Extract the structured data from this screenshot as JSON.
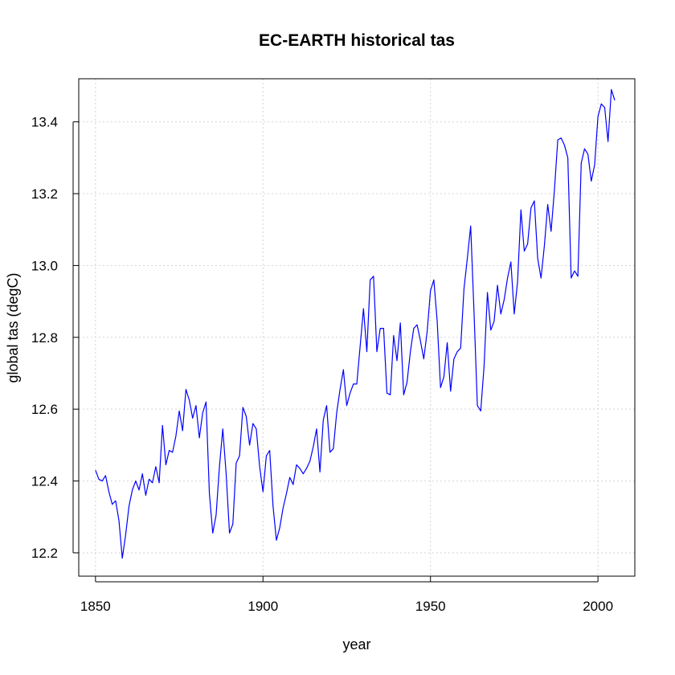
{
  "chart_data": {
    "type": "line",
    "title": "EC-EARTH historical tas",
    "xlabel": "year",
    "ylabel": "global tas (degC)",
    "xlim": [
      1845,
      2011
    ],
    "ylim": [
      12.135,
      13.52
    ],
    "xticks": [
      1850,
      1900,
      1950,
      2000
    ],
    "yticks": [
      12.2,
      12.4,
      12.6,
      12.8,
      13.0,
      13.2,
      13.4
    ],
    "ytick_labels": [
      "12.2",
      "12.4",
      "12.6",
      "12.8",
      "13.0",
      "13.2",
      "13.4"
    ],
    "grid": true,
    "series": [
      {
        "name": "tas",
        "color": "#0000ff",
        "x_start": 1850,
        "values": [
          12.43,
          12.405,
          12.4,
          12.415,
          12.37,
          12.335,
          12.345,
          12.29,
          12.185,
          12.25,
          12.33,
          12.375,
          12.4,
          12.375,
          12.42,
          12.36,
          12.405,
          12.395,
          12.44,
          12.395,
          12.555,
          12.445,
          12.485,
          12.48,
          12.525,
          12.595,
          12.54,
          12.655,
          12.625,
          12.575,
          12.61,
          12.52,
          12.59,
          12.62,
          12.365,
          12.255,
          12.305,
          12.44,
          12.545,
          12.42,
          12.255,
          12.28,
          12.45,
          12.47,
          12.605,
          12.58,
          12.5,
          12.56,
          12.545,
          12.44,
          12.37,
          12.47,
          12.485,
          12.33,
          12.235,
          12.27,
          12.325,
          12.365,
          12.41,
          12.39,
          12.445,
          12.435,
          12.42,
          12.435,
          12.455,
          12.495,
          12.545,
          12.425,
          12.57,
          12.61,
          12.48,
          12.49,
          12.59,
          12.655,
          12.71,
          12.61,
          12.645,
          12.67,
          12.67,
          12.775,
          12.88,
          12.76,
          12.96,
          12.97,
          12.76,
          12.825,
          12.825,
          12.645,
          12.64,
          12.805,
          12.735,
          12.84,
          12.64,
          12.675,
          12.76,
          12.825,
          12.835,
          12.79,
          12.74,
          12.815,
          12.93,
          12.96,
          12.845,
          12.66,
          12.69,
          12.785,
          12.65,
          12.74,
          12.76,
          12.77,
          12.935,
          13.02,
          13.11,
          12.87,
          12.61,
          12.595,
          12.72,
          12.925,
          12.82,
          12.845,
          12.945,
          12.865,
          12.905,
          12.965,
          13.01,
          12.865,
          12.955,
          13.155,
          13.04,
          13.06,
          13.16,
          13.18,
          13.02,
          12.965,
          13.055,
          13.17,
          13.095,
          13.21,
          13.35,
          13.355,
          13.335,
          13.3,
          12.965,
          12.985,
          12.97,
          13.285,
          13.325,
          13.31,
          13.235,
          13.28,
          13.415,
          13.45,
          13.44,
          13.345,
          13.49,
          13.46
        ]
      }
    ]
  }
}
